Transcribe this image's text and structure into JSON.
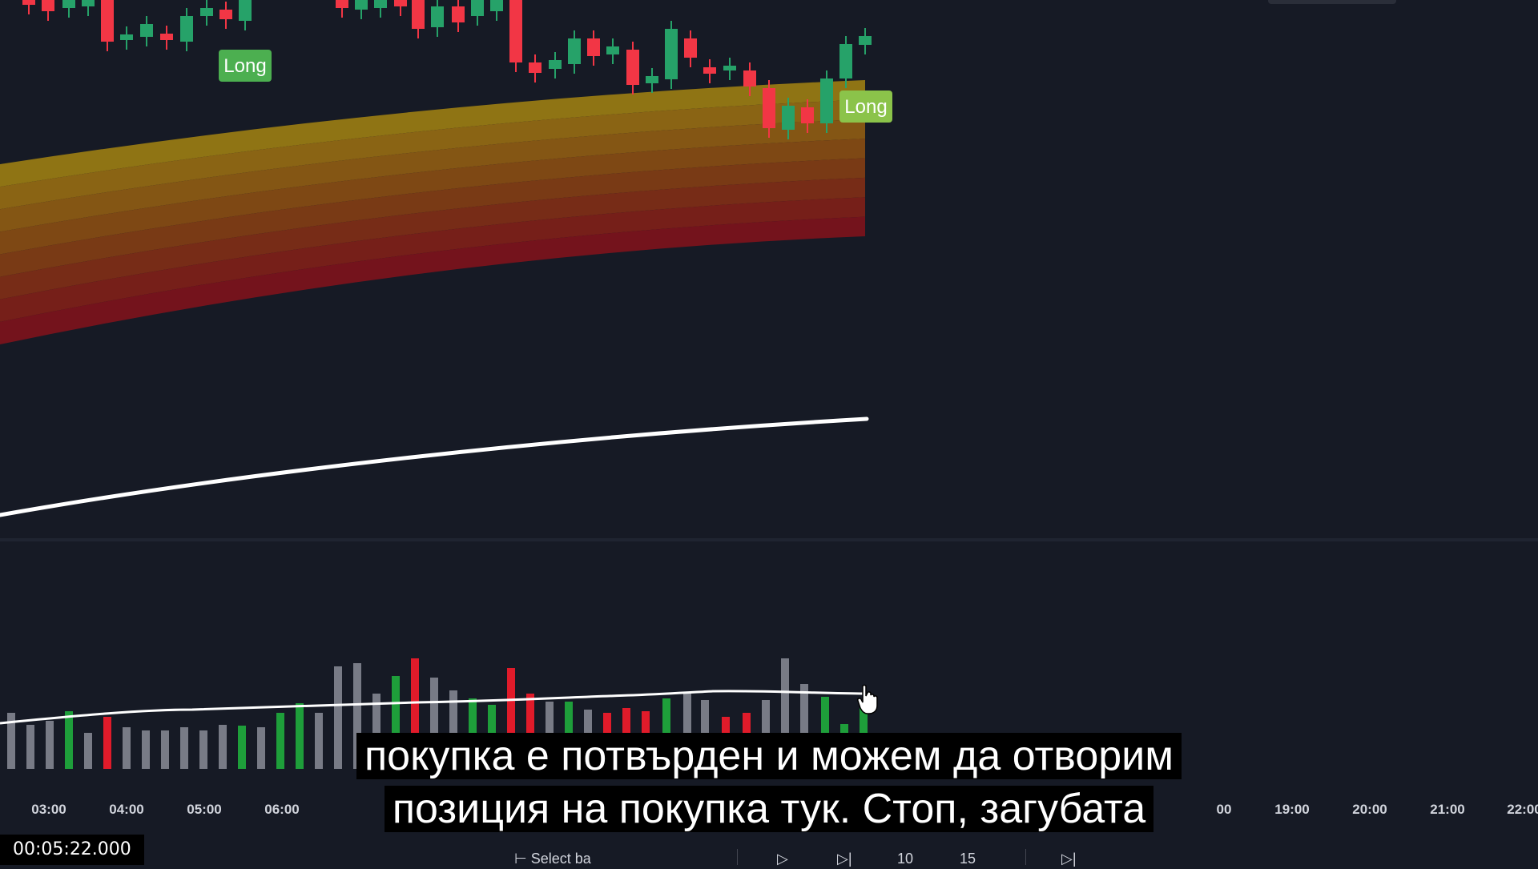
{
  "signals": [
    {
      "label": "Long"
    },
    {
      "label": "Long"
    }
  ],
  "time_axis": [
    "03:00",
    "04:00",
    "05:00",
    "06:00",
    "19:00",
    "20:00",
    "21:00",
    "22:00"
  ],
  "time_axis_partial": "00",
  "subtitles": {
    "line1": "покупка е потвърден и можем да отворим",
    "line2": "позиция на покупка тук. Стоп, загубата"
  },
  "timestamp": "00:05:22.000",
  "colors": {
    "background": "#161a25",
    "bull": "#26a269",
    "bear": "#f23645",
    "long_label": "#4caf50",
    "volume_neutral": "#787b86",
    "ma_line": "#ffffff"
  },
  "icons": [
    "hand-cursor-icon",
    "play-icon",
    "step-forward-icon",
    "skip-end-icon"
  ],
  "playback": {
    "select_label": "Select ba",
    "speed_a": "10",
    "speed_b": "15"
  }
}
